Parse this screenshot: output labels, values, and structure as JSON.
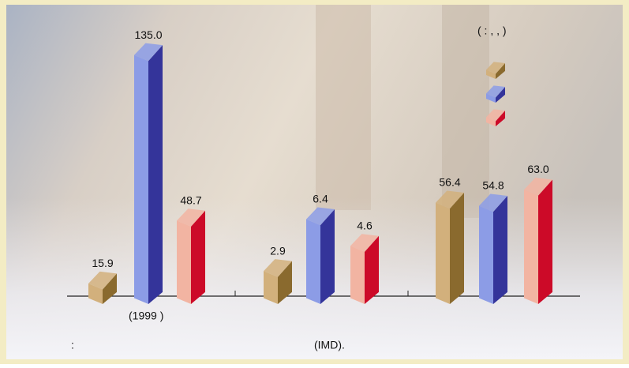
{
  "chart_data": {
    "type": "bar",
    "unit_note": "(     :          ,     ,     )",
    "x_label": "(1999              )",
    "colors": [
      [
        "#d2b07c",
        "#8a6a2e"
      ],
      [
        "#8c9ce6",
        "#34349a"
      ],
      [
        "#f2b4a2",
        "#cc0a28"
      ]
    ],
    "groups": [
      {
        "values": [
          15.9,
          135.0,
          48.7
        ],
        "value_labels": [
          "15.9",
          "135.0",
          "48.7"
        ],
        "ylim": [
          0,
          140
        ]
      },
      {
        "values": [
          2.9,
          6.4,
          4.6
        ],
        "value_labels": [
          "2.9",
          "6.4",
          "4.6"
        ],
        "ylim": [
          0,
          8
        ]
      },
      {
        "values": [
          56.4,
          54.8,
          63.0
        ],
        "value_labels": [
          "56.4",
          "54.8",
          "63.0"
        ],
        "ylim": [
          0,
          70
        ]
      }
    ]
  },
  "source": [
    ":",
    "(IMD)."
  ]
}
